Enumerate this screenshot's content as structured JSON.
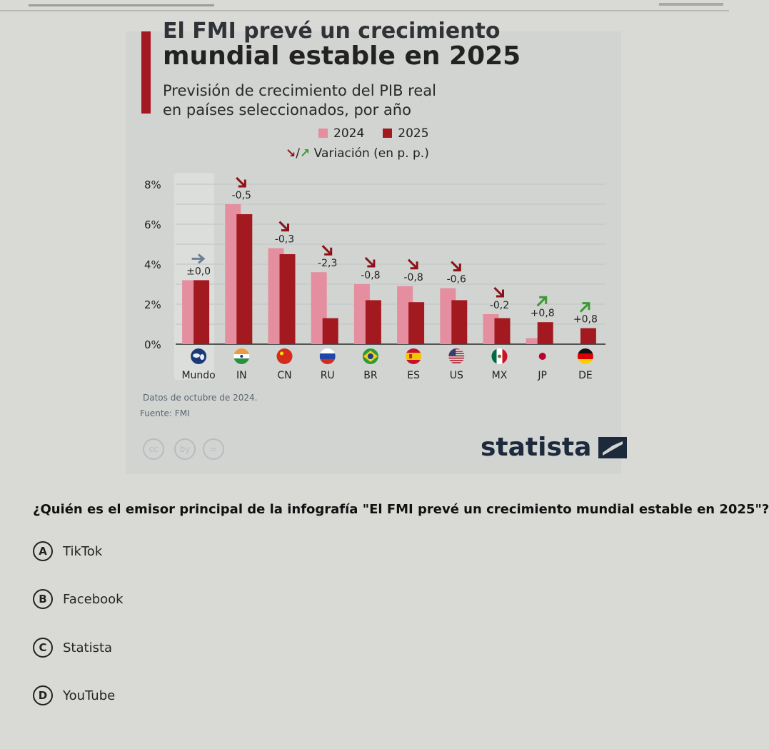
{
  "colors": {
    "bar_2024": "#e48e9f",
    "bar_2025": "#a31920",
    "arrow_down": "#8b1318",
    "arrow_up": "#3d9a35",
    "arrow_flat": "#6c7f95"
  },
  "infographic": {
    "title_line1_cut": "El FMI prevé un crecimiento",
    "title_line2": "mundial estable en 2025",
    "subtitle_line1": "Previsión de crecimiento del PIB real",
    "subtitle_line2": "en países seleccionados, por año",
    "legend_2024": "2024",
    "legend_2025": "2025",
    "legend_arrows": "Variación (en p. p.)",
    "note": "Datos de octubre de 2024.",
    "source": "Fuente: FMI",
    "license_icons": [
      "cc",
      "by",
      "="
    ],
    "brand": "statista"
  },
  "chart_data": {
    "type": "bar",
    "categories": [
      "Mundo",
      "IN",
      "CN",
      "RU",
      "BR",
      "ES",
      "US",
      "MX",
      "JP",
      "DE"
    ],
    "series": [
      {
        "name": "2024",
        "values": [
          3.2,
          7.0,
          4.8,
          3.6,
          3.0,
          2.9,
          2.8,
          1.5,
          0.3,
          0.0
        ]
      },
      {
        "name": "2025",
        "values": [
          3.2,
          6.5,
          4.5,
          1.3,
          2.2,
          2.1,
          2.2,
          1.3,
          1.1,
          0.8
        ]
      }
    ],
    "change_labels": [
      "±0,0",
      "-0,5",
      "-0,3",
      "-2,3",
      "-0,8",
      "-0,8",
      "-0,6",
      "-0,2",
      "+0,8",
      "+0,8"
    ],
    "change_direction": [
      "flat",
      "down",
      "down",
      "down",
      "down",
      "down",
      "down",
      "down",
      "up",
      "up"
    ],
    "flag_icons": [
      "globe-icon",
      "india-flag-icon",
      "china-flag-icon",
      "russia-flag-icon",
      "brazil-flag-icon",
      "spain-flag-icon",
      "usa-flag-icon",
      "mexico-flag-icon",
      "japan-flag-icon",
      "germany-flag-icon"
    ],
    "yticks": [
      "0%",
      "2%",
      "4%",
      "6%",
      "8%"
    ],
    "ytick_values": [
      0,
      2,
      4,
      6,
      8
    ],
    "ylim": [
      0,
      8
    ],
    "grid": true,
    "legend_position": "top"
  },
  "quiz": {
    "question": "¿Quién es el emisor principal de la infografía \"El FMI prevé un crecimiento mundial estable en 2025\"?",
    "options": [
      {
        "letter": "A",
        "text": "TikTok"
      },
      {
        "letter": "B",
        "text": "Facebook"
      },
      {
        "letter": "C",
        "text": "Statista"
      },
      {
        "letter": "D",
        "text": "YouTube"
      }
    ]
  }
}
